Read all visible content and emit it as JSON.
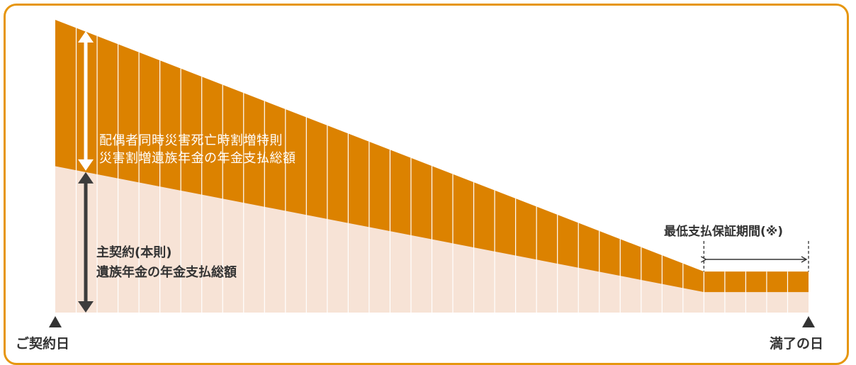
{
  "colors": {
    "border": "#e6960f",
    "rider_area": "#dc8200",
    "main_area": "#f7e3d6",
    "text": "#333333",
    "main_arrow": "#3c3c3c",
    "rider_arrow": "#ffffff"
  },
  "labels": {
    "rider_line1": "配偶者同時災害死亡時割増特則",
    "rider_line2": "災害割増遺族年金の年金支払総額",
    "main_line1": "主契約(本則)",
    "main_line2": "遺族年金の年金支払総額",
    "guarantee": "最低支払保証期間(※)",
    "start": "ご契約日",
    "end": "満了の日"
  },
  "chart_data": {
    "type": "area",
    "periods": 36,
    "declining_periods": 31,
    "guaranteed_periods": 5,
    "total_start": 1.0,
    "total_floor": 0.14,
    "main_start": 0.5,
    "main_floor": 0.07
  }
}
